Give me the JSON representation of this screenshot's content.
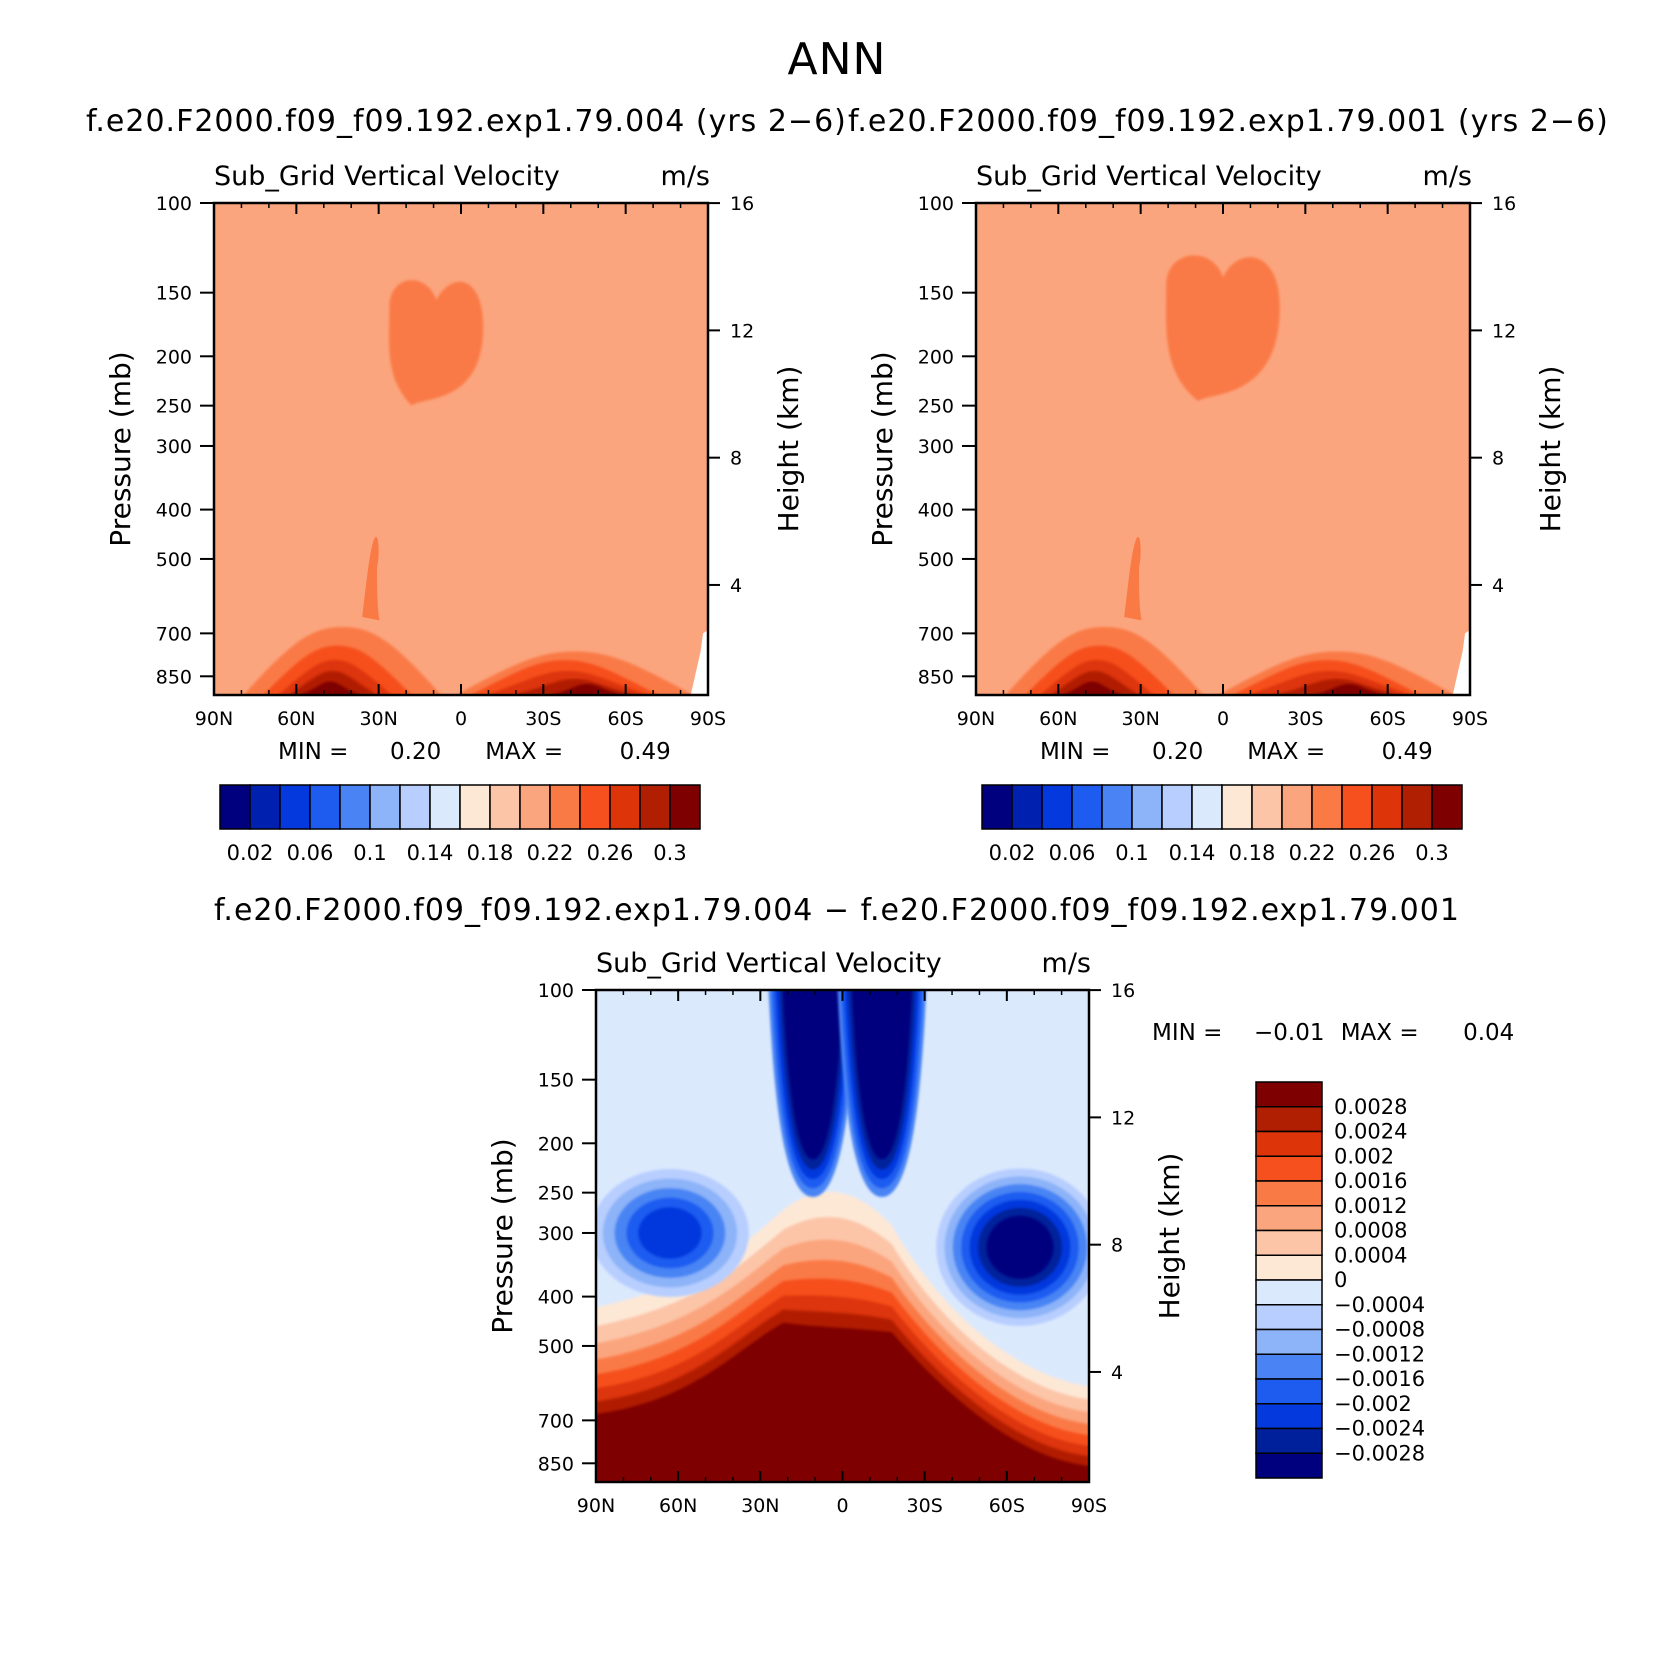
{
  "page": {
    "title": "ANN",
    "case_a_title": "f.e20.F2000.f09_f09.192.exp1.79.004 (yrs 2−6)",
    "case_b_title": "f.e20.F2000.f09_f09.192.exp1.79.001 (yrs 2−6)",
    "diff_title": "f.e20.F2000.f09_f09.192.exp1.79.004 − f.e20.F2000.f09_f09.192.exp1.79.001"
  },
  "palettes": {
    "abs_colors": [
      "#00007f",
      "#0020b0",
      "#0339dd",
      "#1e5cf0",
      "#4a84f4",
      "#8db3f8",
      "#b7ceff",
      "#dbe9fd",
      "#fde8d6",
      "#fcc5a8",
      "#fba57e",
      "#fa7a46",
      "#f6501f",
      "#dd3409",
      "#b11f02",
      "#7f0000"
    ],
    "diff_colors": [
      "#00007f",
      "#00209b",
      "#0339dd",
      "#1e5cf0",
      "#4a84f4",
      "#8db3f8",
      "#b7ceff",
      "#dbe9fd",
      "#fde8d6",
      "#fcc5a8",
      "#fba57e",
      "#fa7a46",
      "#f6501f",
      "#dd3409",
      "#b11f02",
      "#7f0000"
    ]
  },
  "chart_data": [
    {
      "type": "heatmap",
      "title": "Sub_Grid Vertical Velocity",
      "units": "m/s",
      "xlabel": "",
      "ylabel": "Pressure (mb)",
      "y2label": "Height (km)",
      "x_ticks": [
        "90N",
        "60N",
        "30N",
        "0",
        "30S",
        "60S",
        "90S"
      ],
      "y_ticks": [
        "100",
        "150",
        "200",
        "250",
        "300",
        "400",
        "500",
        "700",
        "850"
      ],
      "y2_ticks": [
        "16",
        "12",
        "8",
        "4"
      ],
      "xlim": [
        "90N",
        "90S"
      ],
      "ylim": [
        100,
        925
      ],
      "stats": {
        "min_label": "MIN =",
        "min_value": "0.20",
        "max_label": "MAX =",
        "max_value": "0.49"
      },
      "colorbar": {
        "labels": [
          "0.02",
          "0.06",
          "0.1",
          "0.14",
          "0.18",
          "0.22",
          "0.26",
          "0.3"
        ],
        "levels": [
          0.02,
          0.04,
          0.06,
          0.08,
          0.1,
          0.12,
          0.14,
          0.16,
          0.18,
          0.2,
          0.22,
          0.24,
          0.26,
          0.28,
          0.3
        ]
      },
      "regions": {
        "background_level": 0.21,
        "upper_blob_level": 0.23,
        "surface_max_level": 0.3
      }
    },
    {
      "type": "heatmap",
      "title": "Sub_Grid Vertical Velocity",
      "units": "m/s",
      "xlabel": "",
      "ylabel": "Pressure (mb)",
      "y2label": "Height (km)",
      "x_ticks": [
        "90N",
        "60N",
        "30N",
        "0",
        "30S",
        "60S",
        "90S"
      ],
      "y_ticks": [
        "100",
        "150",
        "200",
        "250",
        "300",
        "400",
        "500",
        "700",
        "850"
      ],
      "y2_ticks": [
        "16",
        "12",
        "8",
        "4"
      ],
      "xlim": [
        "90N",
        "90S"
      ],
      "ylim": [
        100,
        925
      ],
      "stats": {
        "min_label": "MIN =",
        "min_value": "0.20",
        "max_label": "MAX =",
        "max_value": "0.49"
      },
      "colorbar": {
        "labels": [
          "0.02",
          "0.06",
          "0.1",
          "0.14",
          "0.18",
          "0.22",
          "0.26",
          "0.3"
        ],
        "levels": [
          0.02,
          0.04,
          0.06,
          0.08,
          0.1,
          0.12,
          0.14,
          0.16,
          0.18,
          0.2,
          0.22,
          0.24,
          0.26,
          0.28,
          0.3
        ]
      },
      "regions": {
        "background_level": 0.21,
        "upper_blob_level": 0.23,
        "surface_max_level": 0.3
      }
    },
    {
      "type": "heatmap",
      "title": "Sub_Grid Vertical Velocity",
      "units": "m/s",
      "xlabel": "",
      "ylabel": "Pressure (mb)",
      "y2label": "Height (km)",
      "x_ticks": [
        "90N",
        "60N",
        "30N",
        "0",
        "30S",
        "60S",
        "90S"
      ],
      "y_ticks": [
        "100",
        "150",
        "200",
        "250",
        "300",
        "400",
        "500",
        "700",
        "850"
      ],
      "y2_ticks": [
        "16",
        "12",
        "8",
        "4"
      ],
      "xlim": [
        "90N",
        "90S"
      ],
      "ylim": [
        100,
        925
      ],
      "stats": {
        "min_label": "MIN =",
        "min_value": "−0.01",
        "max_label": "MAX =",
        "max_value": "0.04"
      },
      "colorbar": {
        "labels": [
          "0.0028",
          "0.0024",
          "0.002",
          "0.0016",
          "0.0012",
          "0.0008",
          "0.0004",
          "0",
          "−0.0004",
          "−0.0008",
          "−0.0012",
          "−0.0016",
          "−0.002",
          "−0.0024",
          "−0.0028"
        ],
        "levels": [
          0.0028,
          0.0024,
          0.002,
          0.0016,
          0.0012,
          0.0008,
          0.0004,
          0,
          -0.0004,
          -0.0008,
          -0.0012,
          -0.0016,
          -0.002,
          -0.0024,
          -0.0028
        ]
      }
    }
  ]
}
